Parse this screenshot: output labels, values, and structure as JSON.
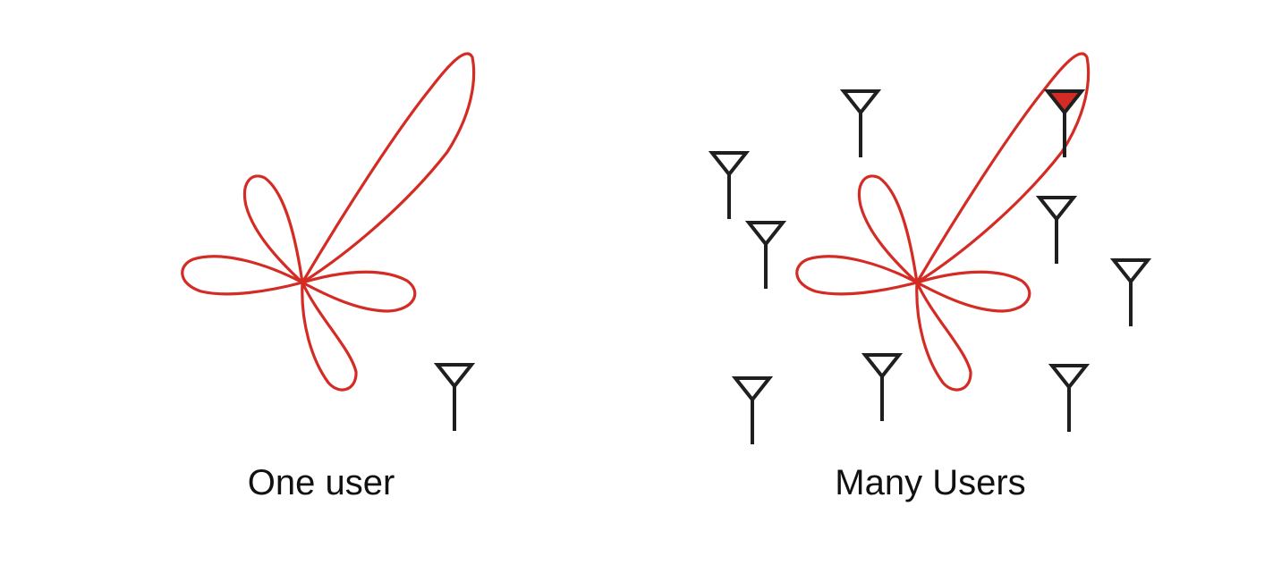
{
  "panels": [
    {
      "id": "one",
      "caption": "One user",
      "users": 1,
      "highlighted_users": 0
    },
    {
      "id": "many",
      "caption": "Many Users",
      "users": 9,
      "highlighted_users": 1
    }
  ],
  "colors": {
    "beam": "#d42b24",
    "antenna": "#1f1f1f",
    "highlight": "#d42b24",
    "caption": "#111111",
    "background": "#ffffff"
  },
  "icons": {
    "beam": "radiation-pattern-icon",
    "user": "antenna-icon"
  }
}
